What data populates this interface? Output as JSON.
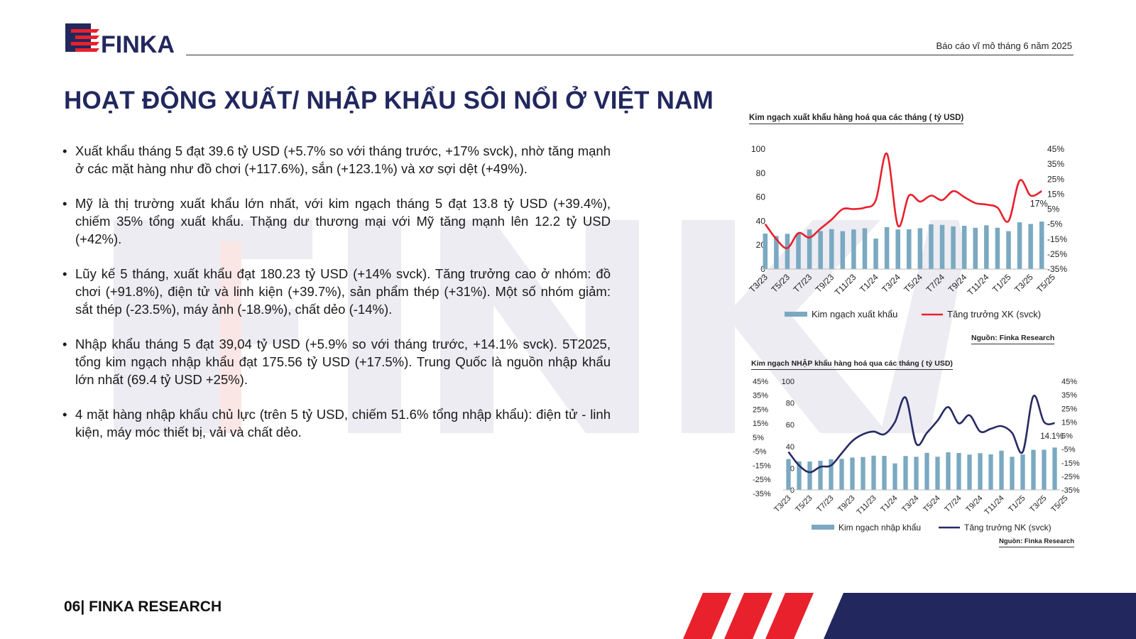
{
  "header": {
    "logo_text": "FINKA",
    "report_title": "Báo cáo vĩ mô tháng 6 năm 2025"
  },
  "page_title": "HOẠT ĐỘNG XUẤT/ NHẬP KHẨU SÔI NỔI Ở VIỆT NAM",
  "bullets": [
    "Xuất khẩu tháng 5 đạt 39.6 tỷ USD (+5.7% so với tháng trước, +17% svck), nhờ tăng mạnh ở các mặt hàng như đồ chơi (+117.6%), sắn (+123.1%) và xơ sợi dệt (+49%).",
    "Mỹ là thị trường xuất khẩu lớn nhất, với kim ngạch tháng 5 đạt 13.8 tỷ USD (+39.4%), chiếm 35% tổng xuất khẩu. Thặng dư thương mại với Mỹ tăng mạnh lên 12.2 tỷ USD (+42%).",
    "Lũy kế 5 tháng, xuất khẩu đạt 180.23 tỷ USD (+14% svck). Tăng trưởng cao ở nhóm: đồ chơi (+91.8%), điện tử và linh kiện (+39.7%), sản phẩm thép (+31%). Một số nhóm giảm: sắt thép (-23.5%), máy ảnh (-18.9%), chất dẻo (-14%).",
    "Nhập khẩu tháng 5 đạt 39,04 tỷ USD (+5.9% so với tháng trước, +14.1% svck). 5T2025, tổng kim ngạch nhập khẩu đạt 175.56 tỷ USD (+17.5%). Trung Quốc là nguồn nhập khẩu lớn nhất (69.4 tỷ USD  +25%).",
    "4 mặt hàng nhập khẩu chủ lực (trên 5 tỷ USD, chiếm 51.6% tổng nhập khẩu): điện tử - linh kiện, máy móc thiết bị, vải và chất dẻo."
  ],
  "footer": {
    "text": "06| FINKA RESEARCH"
  },
  "colors": {
    "navy": "#22285e",
    "red": "#e8212c",
    "bar": "#7aa9c1",
    "import_line": "#262a63",
    "watermark": "#ececf2"
  },
  "chart_data": [
    {
      "type": "bar",
      "title": "Kim ngạch xuất khẩu hàng hoá qua các tháng ( tỷ USD)",
      "source": "Nguồn: Finka Research",
      "tick_labels": [
        "T3/23",
        "T5/23",
        "T7/23",
        "T9/23",
        "T11/23",
        "T1/24",
        "T3/24",
        "T5/24",
        "T7/24",
        "T9/24",
        "T11/24",
        "T1/25",
        "T3/25",
        "T5/25"
      ],
      "ylim_left": [
        0,
        100
      ],
      "yticks_left": [
        "100",
        "80",
        "60",
        "40",
        "20",
        "0"
      ],
      "ylim_right": [
        -35,
        45
      ],
      "yticks_right": [
        "45%",
        "35%",
        "25%",
        "15%",
        "5%",
        "-5%",
        "-15%",
        "-25%",
        "-35%"
      ],
      "legend_position": "bottom",
      "annotation": "17%",
      "series": [
        {
          "name": "Kim ngạch xuất khẩu",
          "type": "bar",
          "values": [
            29.6,
            27.6,
            29.4,
            29.9,
            33.0,
            31.7,
            33.3,
            31.6,
            33.0,
            34.0,
            25.4,
            35.0,
            33.0,
            33.2,
            34.1,
            37.3,
            36.8,
            35.6,
            36.1,
            34.4,
            36.5,
            34.5,
            31.6,
            39.0,
            37.6,
            39.6
          ]
        },
        {
          "name": "Tăng trưởng XK (svck)",
          "type": "line",
          "values": [
            -5,
            -15,
            -21,
            -11,
            -14,
            -8,
            -2,
            5,
            5,
            6,
            11,
            42,
            -6,
            14,
            10,
            14,
            11,
            17,
            13,
            9,
            8,
            6,
            -3,
            24,
            14,
            17
          ]
        }
      ]
    },
    {
      "type": "bar",
      "title": "Kim ngạch NHẬP khẩu hàng hoá qua các tháng ( tỷ USD)",
      "source": "Nguồn: Finka Research",
      "tick_labels": [
        "T3/23",
        "T5/23",
        "T7/23",
        "T9/23",
        "T11/23",
        "T1/24",
        "T3/24",
        "T5/24",
        "T7/24",
        "T9/24",
        "T11/24",
        "T1/25",
        "T3/25",
        "T5/25"
      ],
      "ylim_left": [
        0,
        100
      ],
      "yticks_left": [
        "100",
        "80",
        "60",
        "40",
        "20",
        "0"
      ],
      "ylim_right": [
        -35,
        45
      ],
      "yticks_right": [
        "45%",
        "35%",
        "25%",
        "15%",
        "5%",
        "-5%",
        "-15%",
        "-25%",
        "-35%"
      ],
      "legend_position": "bottom",
      "annotation": "14.1%",
      "series": [
        {
          "name": "Kim ngạch nhập khẩu",
          "type": "bar",
          "values": [
            28.4,
            26.3,
            26.1,
            26.8,
            28.2,
            28.6,
            29.8,
            30.3,
            31.5,
            31.3,
            24.4,
            31.2,
            30.5,
            34.1,
            30.5,
            34.6,
            34.0,
            32.5,
            33.8,
            32.7,
            36.1,
            30.5,
            32.6,
            36.9,
            37.0,
            39.0
          ]
        },
        {
          "name": "Tăng trưởng NK (svck)",
          "type": "line",
          "values": [
            -7,
            -17,
            -22,
            -18,
            -17,
            -8,
            1,
            6,
            8,
            6,
            15,
            33,
            -1,
            7,
            16,
            26,
            14,
            20,
            8,
            10,
            12,
            7,
            -7,
            34,
            15,
            14.1
          ]
        }
      ]
    }
  ]
}
